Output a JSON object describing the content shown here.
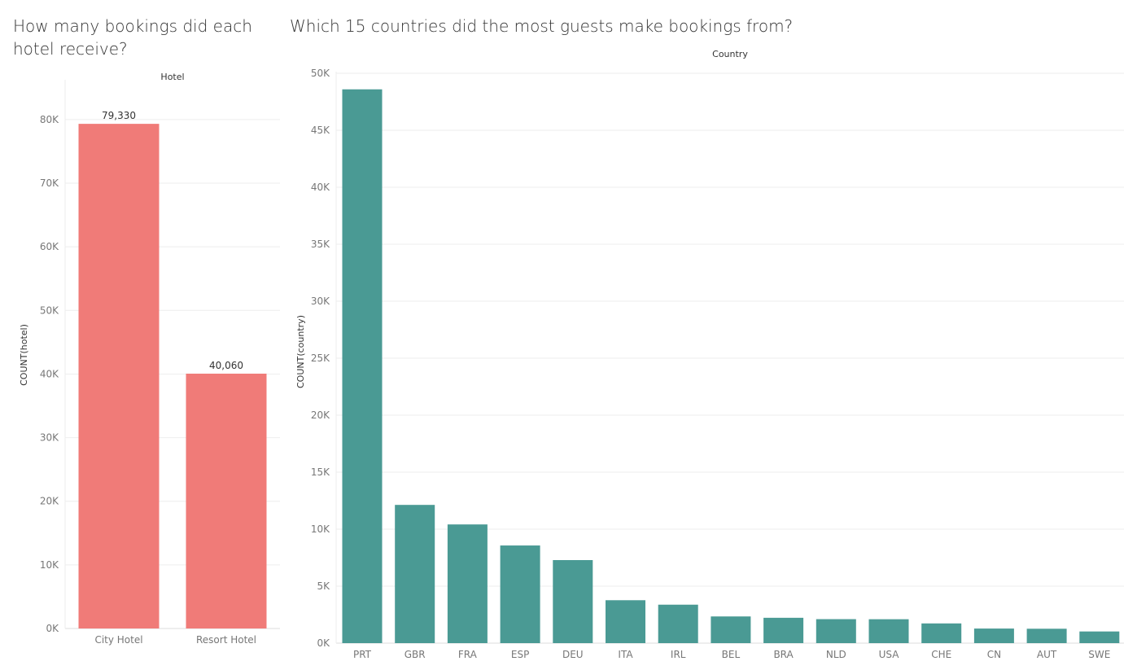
{
  "chart_data": [
    {
      "type": "bar",
      "title": "How many bookings did each hotel receive?",
      "column_header": "Hotel",
      "xlabel": "",
      "ylabel": "COUNT(hotel)",
      "categories": [
        "City Hotel",
        "Resort Hotel"
      ],
      "values": [
        79330,
        40060
      ],
      "data_labels": [
        "79,330",
        "40,060"
      ],
      "ylim": [
        0,
        86000
      ],
      "yticks": [
        0,
        10000,
        20000,
        30000,
        40000,
        50000,
        60000,
        70000,
        80000
      ],
      "ytick_labels": [
        "0K",
        "10K",
        "20K",
        "30K",
        "40K",
        "50K",
        "60K",
        "70K",
        "80K"
      ],
      "grid": true,
      "color": "#F07B78"
    },
    {
      "type": "bar",
      "title": "Which 15 countries did the most guests make bookings from?",
      "column_header": "Country",
      "xlabel": "",
      "ylabel": "COUNT(country)",
      "categories": [
        "PRT",
        "GBR",
        "FRA",
        "ESP",
        "DEU",
        "ITA",
        "IRL",
        "BEL",
        "BRA",
        "NLD",
        "USA",
        "CHE",
        "CN",
        "AUT",
        "SWE"
      ],
      "values": [
        48590,
        12129,
        10415,
        8568,
        7287,
        3766,
        3375,
        2342,
        2224,
        2104,
        2097,
        1730,
        1279,
        1263,
        1024
      ],
      "ylim": [
        0,
        50000
      ],
      "yticks": [
        0,
        5000,
        10000,
        15000,
        20000,
        25000,
        30000,
        35000,
        40000,
        45000,
        50000
      ],
      "ytick_labels": [
        "0K",
        "5K",
        "10K",
        "15K",
        "20K",
        "25K",
        "30K",
        "35K",
        "40K",
        "45K",
        "50K"
      ],
      "grid": true,
      "color": "#4A9A94"
    }
  ]
}
